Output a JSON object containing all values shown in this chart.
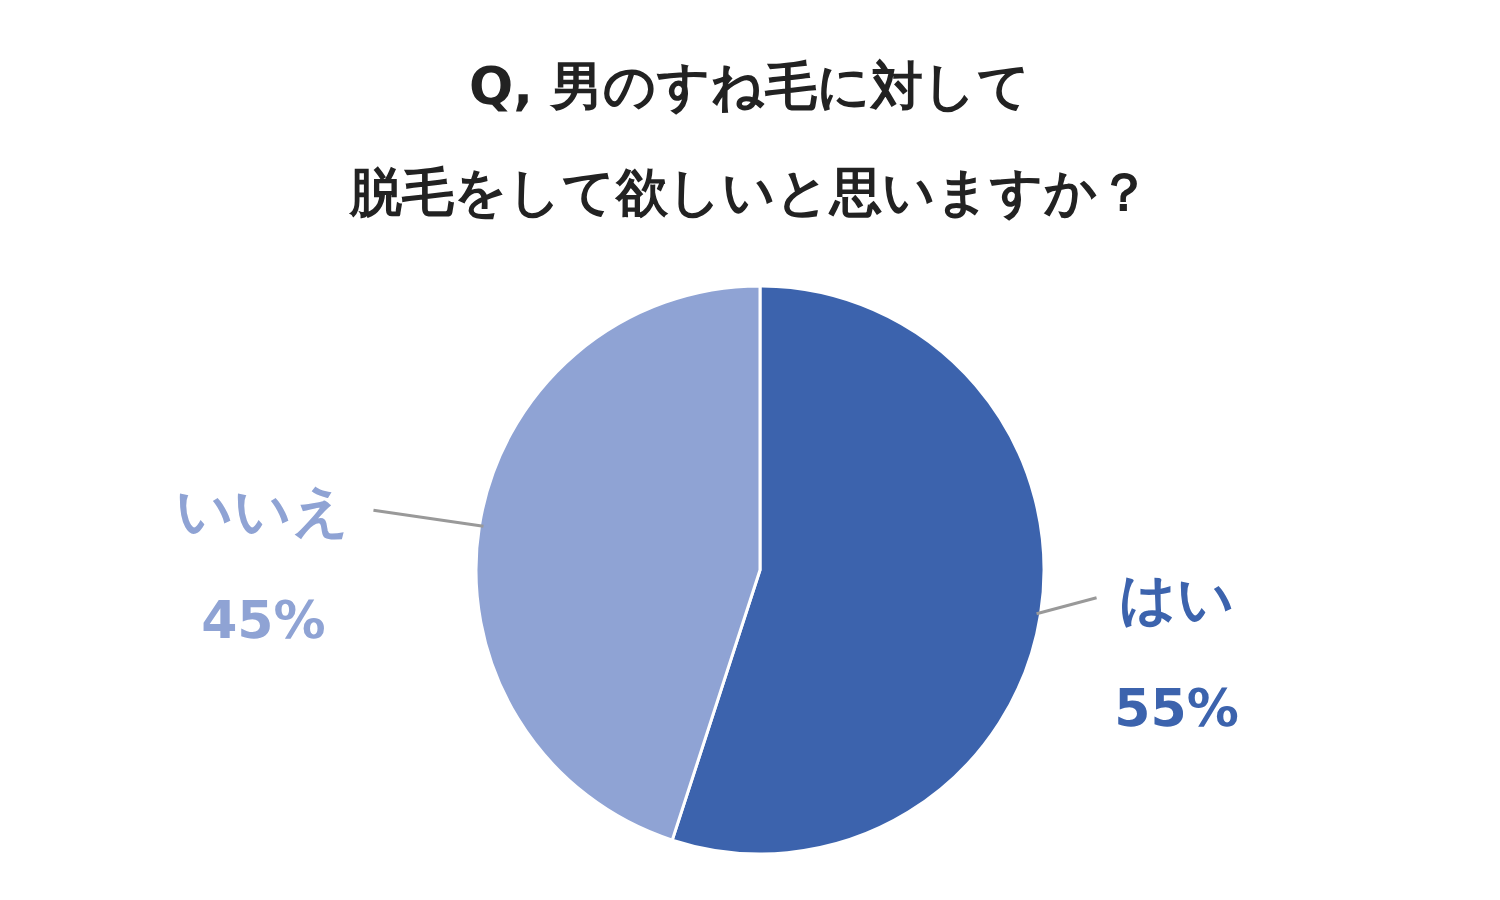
{
  "chart_data": {
    "type": "pie",
    "title": "Q, 男のすね毛に対して",
    "subtitle": "脱毛をして欲しいと思いますか？",
    "categories": [
      "はい",
      "いいえ"
    ],
    "values": [
      55,
      45
    ],
    "value_labels": [
      "55%",
      "45%"
    ],
    "colors": [
      "#3c63ad",
      "#8fa3d4"
    ]
  }
}
